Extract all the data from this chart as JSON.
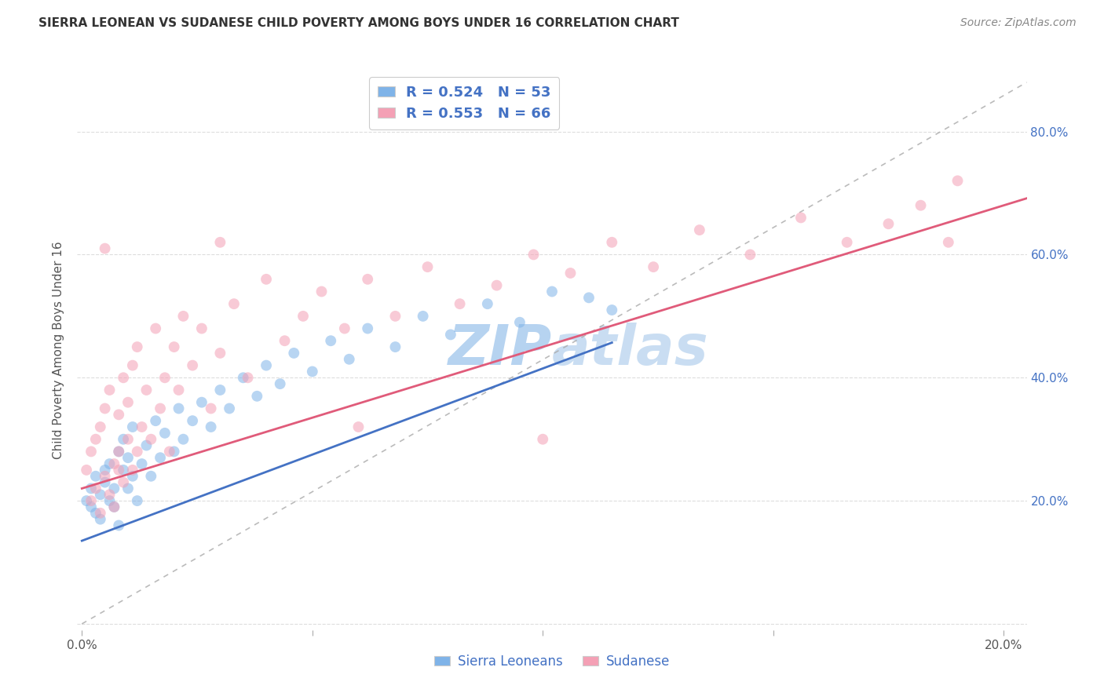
{
  "title": "SIERRA LEONEAN VS SUDANESE CHILD POVERTY AMONG BOYS UNDER 16 CORRELATION CHART",
  "source": "Source: ZipAtlas.com",
  "ylabel": "Child Poverty Among Boys Under 16",
  "sierra_R": "0.524",
  "sierra_N": "53",
  "sudanese_R": "0.553",
  "sudanese_N": "66",
  "sierra_color": "#7fb3e8",
  "sudanese_color": "#f4a0b5",
  "sierra_line_color": "#4472C4",
  "sudanese_line_color": "#e05b7a",
  "diagonal_color": "#aaaaaa",
  "watermark_color": "#c8dff5",
  "title_color": "#333333",
  "source_color": "#888888",
  "axis_label_color": "#4472C4",
  "background_color": "#ffffff",
  "grid_color": "#dddddd",
  "marker_size": 100,
  "marker_alpha": 0.55,
  "sl_intercept": 0.135,
  "sl_slope": 2.8,
  "sd_intercept": 0.22,
  "sd_slope": 2.3,
  "xlim_max": 0.205,
  "ylim_min": -0.01,
  "ylim_max": 0.9,
  "sierra_x": [
    0.001,
    0.002,
    0.002,
    0.003,
    0.003,
    0.004,
    0.004,
    0.005,
    0.005,
    0.006,
    0.006,
    0.007,
    0.007,
    0.008,
    0.008,
    0.009,
    0.009,
    0.01,
    0.01,
    0.011,
    0.011,
    0.012,
    0.013,
    0.014,
    0.015,
    0.016,
    0.017,
    0.018,
    0.02,
    0.021,
    0.022,
    0.024,
    0.026,
    0.028,
    0.03,
    0.032,
    0.035,
    0.038,
    0.04,
    0.043,
    0.046,
    0.05,
    0.054,
    0.058,
    0.062,
    0.068,
    0.074,
    0.08,
    0.088,
    0.095,
    0.102,
    0.11,
    0.115
  ],
  "sierra_y": [
    0.2,
    0.22,
    0.19,
    0.24,
    0.18,
    0.21,
    0.17,
    0.23,
    0.25,
    0.2,
    0.26,
    0.22,
    0.19,
    0.28,
    0.16,
    0.25,
    0.3,
    0.22,
    0.27,
    0.24,
    0.32,
    0.2,
    0.26,
    0.29,
    0.24,
    0.33,
    0.27,
    0.31,
    0.28,
    0.35,
    0.3,
    0.33,
    0.36,
    0.32,
    0.38,
    0.35,
    0.4,
    0.37,
    0.42,
    0.39,
    0.44,
    0.41,
    0.46,
    0.43,
    0.48,
    0.45,
    0.5,
    0.47,
    0.52,
    0.49,
    0.54,
    0.53,
    0.51
  ],
  "sudanese_x": [
    0.001,
    0.002,
    0.002,
    0.003,
    0.003,
    0.004,
    0.004,
    0.005,
    0.005,
    0.006,
    0.006,
    0.007,
    0.007,
    0.008,
    0.008,
    0.009,
    0.009,
    0.01,
    0.01,
    0.011,
    0.011,
    0.012,
    0.012,
    0.013,
    0.014,
    0.015,
    0.016,
    0.017,
    0.018,
    0.019,
    0.02,
    0.021,
    0.022,
    0.024,
    0.026,
    0.028,
    0.03,
    0.033,
    0.036,
    0.04,
    0.044,
    0.048,
    0.052,
    0.057,
    0.062,
    0.068,
    0.075,
    0.082,
    0.09,
    0.098,
    0.106,
    0.115,
    0.124,
    0.134,
    0.145,
    0.156,
    0.166,
    0.175,
    0.182,
    0.188,
    0.03,
    0.06,
    0.005,
    0.008,
    0.1,
    0.19
  ],
  "sudanese_y": [
    0.25,
    0.2,
    0.28,
    0.22,
    0.3,
    0.18,
    0.32,
    0.24,
    0.35,
    0.21,
    0.38,
    0.26,
    0.19,
    0.34,
    0.28,
    0.4,
    0.23,
    0.3,
    0.36,
    0.25,
    0.42,
    0.28,
    0.45,
    0.32,
    0.38,
    0.3,
    0.48,
    0.35,
    0.4,
    0.28,
    0.45,
    0.38,
    0.5,
    0.42,
    0.48,
    0.35,
    0.44,
    0.52,
    0.4,
    0.56,
    0.46,
    0.5,
    0.54,
    0.48,
    0.56,
    0.5,
    0.58,
    0.52,
    0.55,
    0.6,
    0.57,
    0.62,
    0.58,
    0.64,
    0.6,
    0.66,
    0.62,
    0.65,
    0.68,
    0.62,
    0.62,
    0.32,
    0.61,
    0.25,
    0.3,
    0.72
  ]
}
